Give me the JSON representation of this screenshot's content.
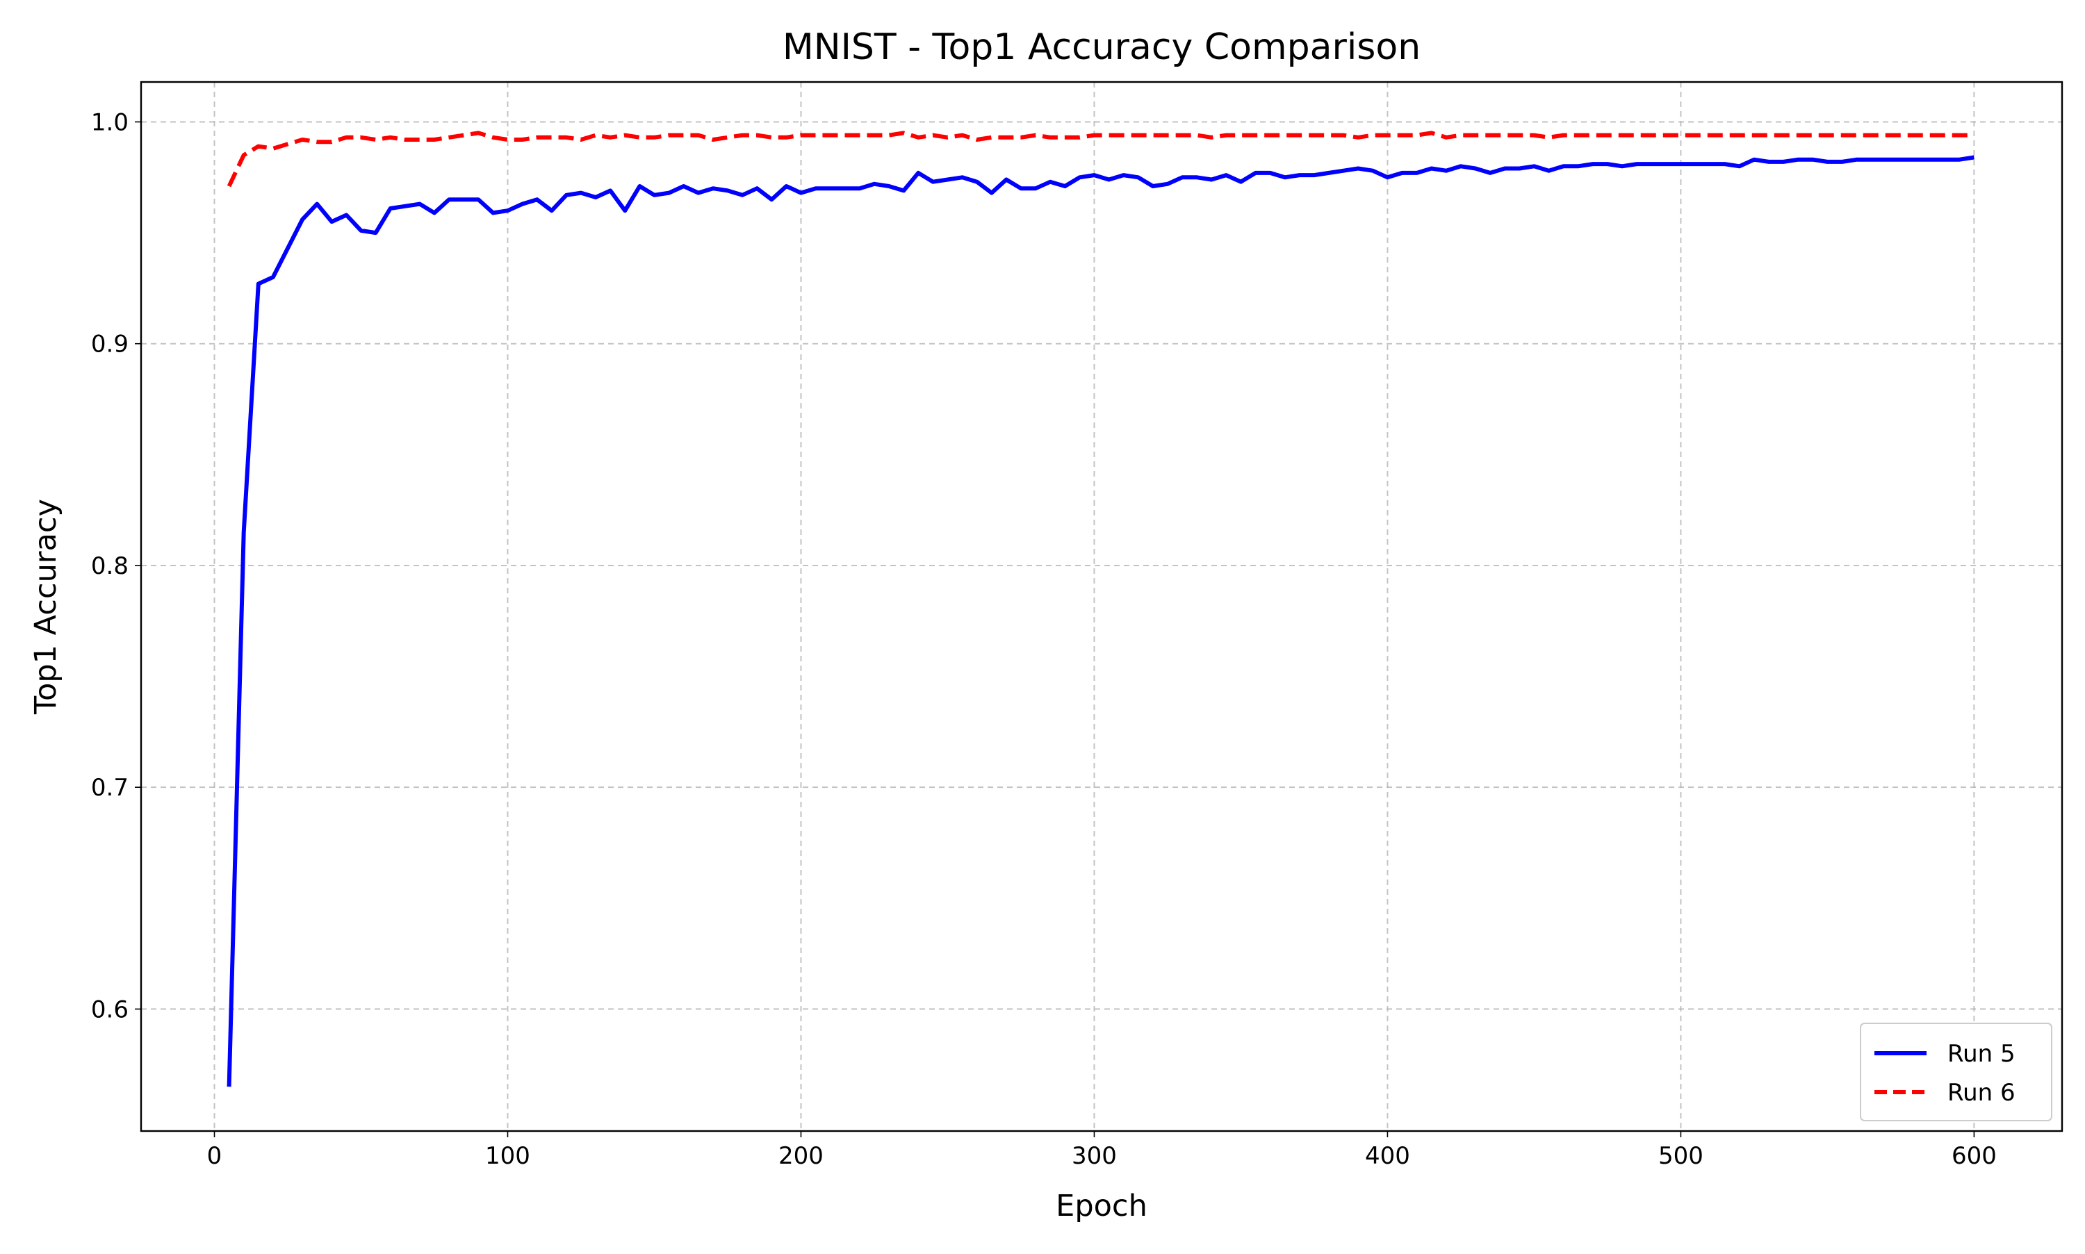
{
  "chart_data": {
    "type": "line",
    "title": "MNIST - Top1 Accuracy Comparison",
    "xlabel": "Epoch",
    "ylabel": "Top1 Accuracy",
    "xlim": [
      -25,
      630
    ],
    "ylim": [
      0.545,
      1.018
    ],
    "xticks": [
      0,
      100,
      200,
      300,
      400,
      500,
      600
    ],
    "yticks": [
      0.6,
      0.7,
      0.8,
      0.9,
      1.0
    ],
    "ytick_labels": [
      "0.6",
      "0.7",
      "0.8",
      "0.9",
      "1.0"
    ],
    "grid": true,
    "legend_position": "lower-right",
    "x": [
      5,
      10,
      15,
      20,
      25,
      30,
      35,
      40,
      45,
      50,
      55,
      60,
      65,
      70,
      75,
      80,
      85,
      90,
      95,
      100,
      105,
      110,
      115,
      120,
      125,
      130,
      135,
      140,
      145,
      150,
      155,
      160,
      165,
      170,
      175,
      180,
      185,
      190,
      195,
      200,
      205,
      210,
      215,
      220,
      225,
      230,
      235,
      240,
      245,
      250,
      255,
      260,
      265,
      270,
      275,
      280,
      285,
      290,
      295,
      300,
      305,
      310,
      315,
      320,
      325,
      330,
      335,
      340,
      345,
      350,
      355,
      360,
      365,
      370,
      375,
      380,
      385,
      390,
      395,
      400,
      405,
      410,
      415,
      420,
      425,
      430,
      435,
      440,
      445,
      450,
      455,
      460,
      465,
      470,
      475,
      480,
      485,
      490,
      495,
      500,
      505,
      510,
      515,
      520,
      525,
      530,
      535,
      540,
      545,
      550,
      555,
      560,
      565,
      570,
      575,
      580,
      585,
      590,
      595,
      600
    ],
    "series": [
      {
        "name": "Run 5",
        "color": "#0000ff",
        "style": "solid",
        "values": [
          0.565,
          0.815,
          0.927,
          0.93,
          0.943,
          0.956,
          0.963,
          0.955,
          0.958,
          0.951,
          0.95,
          0.961,
          0.962,
          0.963,
          0.959,
          0.965,
          0.965,
          0.965,
          0.959,
          0.96,
          0.963,
          0.965,
          0.96,
          0.967,
          0.968,
          0.966,
          0.969,
          0.96,
          0.971,
          0.967,
          0.968,
          0.971,
          0.968,
          0.97,
          0.969,
          0.967,
          0.97,
          0.965,
          0.971,
          0.968,
          0.97,
          0.97,
          0.97,
          0.97,
          0.972,
          0.971,
          0.969,
          0.977,
          0.973,
          0.974,
          0.975,
          0.973,
          0.968,
          0.974,
          0.97,
          0.97,
          0.973,
          0.971,
          0.975,
          0.976,
          0.974,
          0.976,
          0.975,
          0.971,
          0.972,
          0.975,
          0.975,
          0.974,
          0.976,
          0.973,
          0.977,
          0.977,
          0.975,
          0.976,
          0.976,
          0.977,
          0.978,
          0.979,
          0.978,
          0.975,
          0.977,
          0.977,
          0.979,
          0.978,
          0.98,
          0.979,
          0.977,
          0.979,
          0.979,
          0.98,
          0.978,
          0.98,
          0.98,
          0.981,
          0.981,
          0.98,
          0.981,
          0.981,
          0.981,
          0.981,
          0.981,
          0.981,
          0.981,
          0.98,
          0.983,
          0.982,
          0.982,
          0.983,
          0.983,
          0.982,
          0.982,
          0.983,
          0.983,
          0.983,
          0.983,
          0.983,
          0.983,
          0.983,
          0.983,
          0.984
        ]
      },
      {
        "name": "Run 6",
        "color": "#ff0000",
        "style": "dashed",
        "values": [
          0.971,
          0.985,
          0.989,
          0.988,
          0.99,
          0.992,
          0.991,
          0.991,
          0.993,
          0.993,
          0.992,
          0.993,
          0.992,
          0.992,
          0.992,
          0.993,
          0.994,
          0.995,
          0.993,
          0.992,
          0.992,
          0.993,
          0.993,
          0.993,
          0.992,
          0.994,
          0.993,
          0.994,
          0.993,
          0.993,
          0.994,
          0.994,
          0.994,
          0.992,
          0.993,
          0.994,
          0.994,
          0.993,
          0.993,
          0.994,
          0.994,
          0.994,
          0.994,
          0.994,
          0.994,
          0.994,
          0.995,
          0.993,
          0.994,
          0.993,
          0.994,
          0.992,
          0.993,
          0.993,
          0.993,
          0.994,
          0.993,
          0.993,
          0.993,
          0.994,
          0.994,
          0.994,
          0.994,
          0.994,
          0.994,
          0.994,
          0.994,
          0.993,
          0.994,
          0.994,
          0.994,
          0.994,
          0.994,
          0.994,
          0.994,
          0.994,
          0.994,
          0.993,
          0.994,
          0.994,
          0.994,
          0.994,
          0.995,
          0.993,
          0.994,
          0.994,
          0.994,
          0.994,
          0.994,
          0.994,
          0.993,
          0.994,
          0.994,
          0.994,
          0.994,
          0.994,
          0.994,
          0.994,
          0.994,
          0.994,
          0.994,
          0.994,
          0.994,
          0.994,
          0.994,
          0.994,
          0.994,
          0.994,
          0.994,
          0.994,
          0.994,
          0.994,
          0.994,
          0.994,
          0.994,
          0.994,
          0.994,
          0.994,
          0.994,
          0.994
        ]
      }
    ]
  }
}
